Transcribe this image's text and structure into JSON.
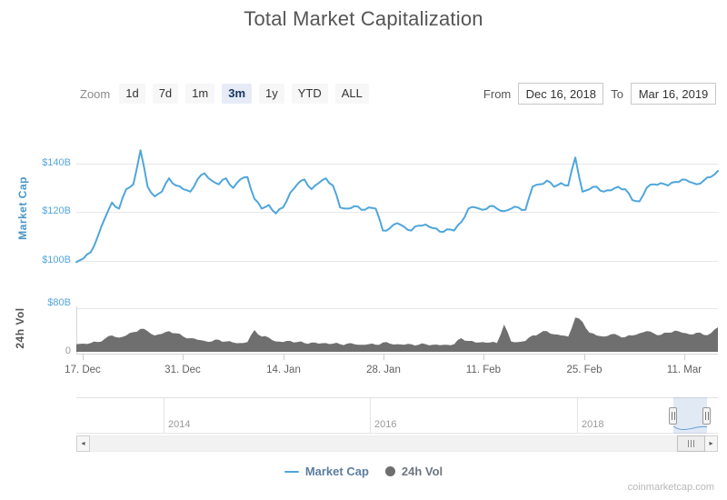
{
  "title": "Total Market Capitalization",
  "toolbar": {
    "zoom_label": "Zoom",
    "buttons": [
      {
        "label": "1d",
        "selected": false
      },
      {
        "label": "7d",
        "selected": false
      },
      {
        "label": "1m",
        "selected": false
      },
      {
        "label": "3m",
        "selected": true
      },
      {
        "label": "1y",
        "selected": false
      },
      {
        "label": "YTD",
        "selected": false
      },
      {
        "label": "ALL",
        "selected": false
      }
    ],
    "from_label": "From",
    "from_value": "Dec 16, 2018",
    "to_label": "To",
    "to_value": "Mar 16, 2019"
  },
  "colors": {
    "market_cap_line": "#4fa6dc",
    "volume_fill": "#6f6f6f",
    "axis_label_blue": "#55a5db",
    "navigator_line": "#5fa0d8"
  },
  "chart_data": [
    {
      "type": "line",
      "name": "Market Cap",
      "unit": "$B",
      "ylabel": "Market Cap",
      "x_range": [
        "Dec 16, 2018",
        "Mar 16, 2019"
      ],
      "x_interval": "daily",
      "ylim": [
        95,
        150
      ],
      "grid": "horizontal",
      "yticks": [
        {
          "value": 140,
          "label": "$140B"
        },
        {
          "value": 120,
          "label": "$120B"
        },
        {
          "value": 100,
          "label": "$100B"
        }
      ],
      "xticks": [
        "17. Dec",
        "31. Dec",
        "14. Jan",
        "28. Jan",
        "11. Feb",
        "25. Feb",
        "11. Mar"
      ],
      "values": [
        99.5,
        101,
        103.5,
        110,
        117.5,
        124,
        121.5,
        129.5,
        131.5,
        145.5,
        130.5,
        126.5,
        128.5,
        134,
        131,
        129.5,
        128.5,
        133.5,
        136,
        133,
        131.5,
        134,
        130,
        133.5,
        134.5,
        125.5,
        121.5,
        123,
        119.5,
        122,
        128,
        131.5,
        133.5,
        129.5,
        132,
        134,
        131,
        122,
        121.5,
        122.5,
        121,
        122,
        121.5,
        112.5,
        113.5,
        115.5,
        114,
        112.5,
        114.5,
        115,
        113.5,
        112,
        113,
        112.5,
        116,
        121.5,
        122,
        121,
        122.5,
        121.5,
        120.5,
        121.5,
        122,
        121,
        130.5,
        131.5,
        133,
        130.5,
        132,
        131,
        142.5,
        128.5,
        129.5,
        130.5,
        128.5,
        129,
        130.5,
        129.5,
        125,
        124.5,
        130,
        131.5,
        132,
        131,
        132.5,
        133.5,
        132.5,
        131.5,
        133,
        134.5,
        137
      ]
    },
    {
      "type": "area",
      "name": "24h Vol",
      "unit": "$B",
      "ylabel": "24h Vol",
      "x_range": [
        "Dec 16, 2018",
        "Mar 16, 2019"
      ],
      "x_interval": "daily",
      "ylim": [
        0,
        80
      ],
      "yticks": [
        {
          "value": 80,
          "label": "$80B"
        },
        {
          "value": 0,
          "label": "0"
        }
      ],
      "values": [
        14,
        15,
        16,
        18,
        24,
        30,
        26,
        30,
        36,
        42,
        38,
        30,
        33,
        38,
        34,
        28,
        25,
        22,
        20,
        19,
        22,
        19,
        17,
        16,
        18,
        40,
        28,
        26,
        19,
        18,
        20,
        18,
        16,
        17,
        15,
        16,
        15,
        14,
        15,
        14,
        13,
        14,
        13,
        17,
        15,
        14,
        13,
        14,
        13,
        14,
        13,
        12,
        13,
        14,
        25,
        20,
        17,
        18,
        17,
        16,
        50,
        19,
        18,
        20,
        30,
        34,
        38,
        32,
        30,
        28,
        63,
        55,
        35,
        30,
        28,
        32,
        30,
        27,
        30,
        34,
        38,
        34,
        31,
        35,
        39,
        35,
        32,
        35,
        31,
        34,
        45
      ]
    }
  ],
  "navigator": {
    "years": [
      "2014",
      "2016",
      "2018"
    ],
    "selected_range": [
      "Dec 16, 2018",
      "Mar 16, 2019"
    ]
  },
  "legend": [
    {
      "label": "Market Cap",
      "symbol": "line",
      "color": "#4fa6dc"
    },
    {
      "label": "24h Vol",
      "symbol": "dot",
      "color": "#6e6e6e"
    }
  ],
  "watermark": "coinmarketcap.com"
}
